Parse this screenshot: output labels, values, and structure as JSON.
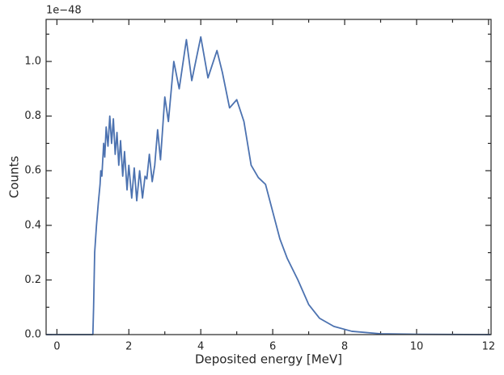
{
  "chart_data": {
    "type": "line",
    "x_label": "Deposited energy [MeV]",
    "y_label": "Counts",
    "y_offset_text": "1e−48",
    "x": [
      -0.3,
      1.0,
      1.02,
      1.05,
      1.1,
      1.15,
      1.2,
      1.22,
      1.25,
      1.3,
      1.33,
      1.37,
      1.42,
      1.47,
      1.52,
      1.57,
      1.62,
      1.67,
      1.72,
      1.77,
      1.83,
      1.88,
      1.95,
      2.0,
      2.08,
      2.15,
      2.22,
      2.3,
      2.38,
      2.45,
      2.5,
      2.57,
      2.65,
      2.72,
      2.8,
      2.88,
      3.0,
      3.1,
      3.25,
      3.4,
      3.6,
      3.75,
      4.0,
      4.2,
      4.45,
      4.6,
      4.8,
      5.0,
      5.2,
      5.4,
      5.6,
      5.8,
      6.0,
      6.2,
      6.4,
      6.7,
      7.0,
      7.3,
      7.7,
      8.2,
      9.0,
      10.0,
      12.05
    ],
    "series": [
      {
        "color": "#4c72b0",
        "values": [
          0,
          0,
          0.1,
          0.3,
          0.4,
          0.48,
          0.55,
          0.6,
          0.58,
          0.7,
          0.65,
          0.76,
          0.69,
          0.8,
          0.7,
          0.79,
          0.66,
          0.74,
          0.62,
          0.71,
          0.58,
          0.67,
          0.53,
          0.62,
          0.5,
          0.61,
          0.49,
          0.6,
          0.5,
          0.58,
          0.57,
          0.66,
          0.56,
          0.62,
          0.75,
          0.64,
          0.87,
          0.78,
          1.0,
          0.9,
          1.08,
          0.93,
          1.09,
          0.94,
          1.04,
          0.96,
          0.83,
          0.86,
          0.78,
          0.62,
          0.575,
          0.55,
          0.45,
          0.35,
          0.28,
          0.2,
          0.11,
          0.06,
          0.03,
          0.012,
          0.003,
          0.001,
          0
        ]
      }
    ],
    "xlim": [
      -0.3,
      12.07
    ],
    "ylim": [
      0,
      1.154
    ],
    "xticks": [
      0,
      2,
      4,
      6,
      8,
      10,
      12
    ],
    "yticks": [
      {
        "value": 0,
        "label": "0.0"
      },
      0.2,
      0.4,
      0.6,
      0.8,
      {
        "value": 1,
        "label": "1.0"
      }
    ],
    "xminorticks": [
      1,
      3,
      5,
      7,
      9,
      11
    ],
    "yminorticks": [
      0.1,
      0.3,
      0.5,
      0.7,
      0.9,
      1.1
    ]
  }
}
